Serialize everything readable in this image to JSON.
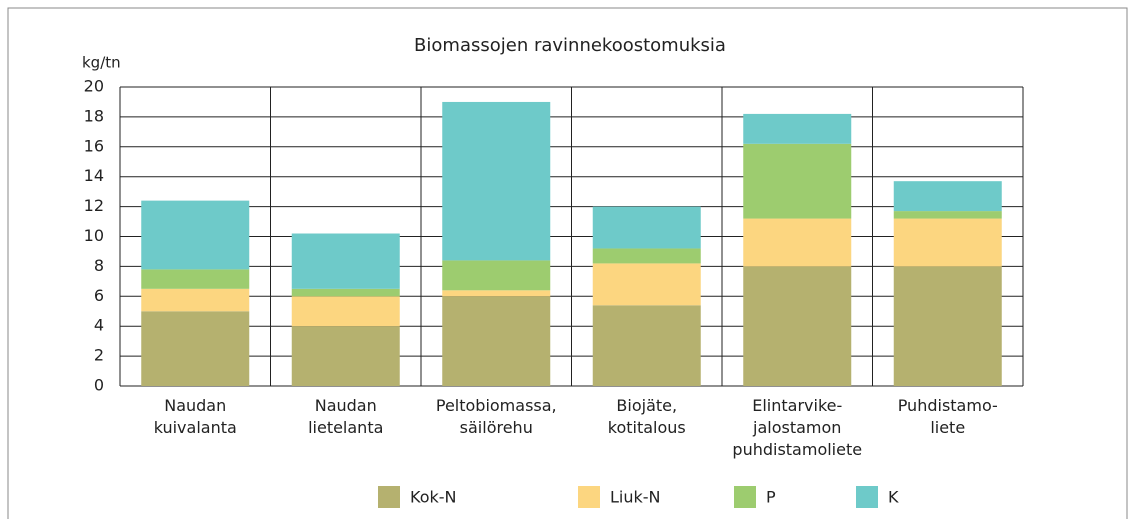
{
  "chart_data": {
    "type": "stacked_bar",
    "title": "Biomassojen ravinnekoostomuksia",
    "y_label": "kg/tn",
    "categories": [
      "Naudan\nkuivalanta",
      "Naudan\nlietelanta",
      "Peltobiomassa,\nsäilörehu",
      "Biojäte,\nkotitalous",
      "Elintarvike-\njalostamon\npuhdistamoliete",
      "Puhdistamo-\nliete"
    ],
    "series": [
      {
        "name": "Kok-N",
        "color": "#b5b16f",
        "values": [
          5.0,
          4.0,
          6.0,
          5.4,
          8.0,
          8.0
        ]
      },
      {
        "name": "Liuk-N",
        "color": "#fcd680",
        "values": [
          1.5,
          2.0,
          0.4,
          2.8,
          3.2,
          3.2
        ]
      },
      {
        "name": "P",
        "color": "#9dcc6f",
        "values": [
          1.3,
          0.5,
          2.0,
          1.0,
          5.0,
          0.5
        ]
      },
      {
        "name": "K",
        "color": "#6ecac9",
        "values": [
          4.6,
          3.7,
          10.6,
          2.8,
          2.0,
          2.0
        ]
      }
    ],
    "ylim": [
      0,
      20
    ],
    "yticks": [
      0,
      2,
      4,
      6,
      8,
      10,
      12,
      14,
      16,
      18,
      20
    ],
    "grid": true,
    "legend": "bottom"
  }
}
